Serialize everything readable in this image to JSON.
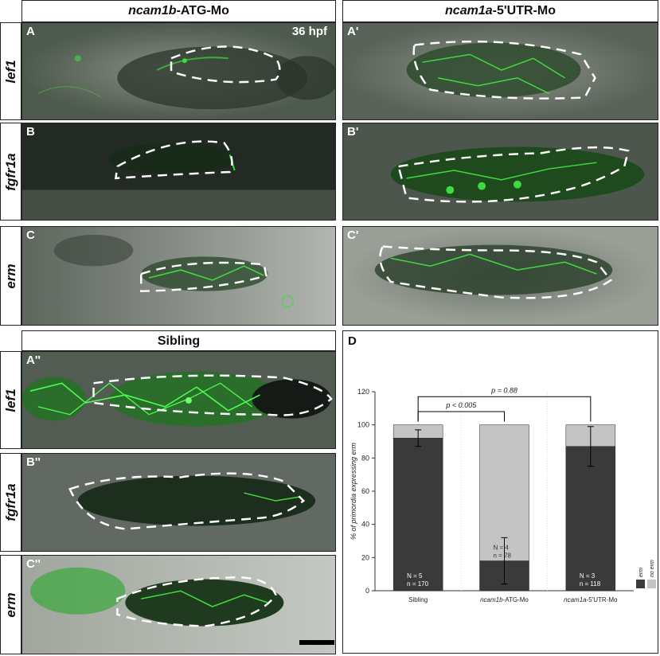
{
  "headers": {
    "left": {
      "italic": "ncam1b",
      "rest": "-ATG-Mo"
    },
    "right": {
      "italic": "ncam1a",
      "rest": "-5'UTR-Mo"
    },
    "sibling": "Sibling"
  },
  "row_labels": [
    "lef1",
    "fgfr1a",
    "erm"
  ],
  "panel_labels": {
    "a": "A",
    "a1": "A'",
    "a2": "A''",
    "b": "B",
    "b1": "B'",
    "b2": "B''",
    "c": "C",
    "c1": "C'",
    "c2": "C''",
    "d": "D"
  },
  "timepoint": "36 hpf",
  "colors": {
    "dark_bar": "#3a3a3a",
    "light_bar": "#c4c4c4",
    "fluorescence": "#3ddc3d"
  },
  "chart_data": {
    "type": "bar",
    "stacked": true,
    "categories": [
      "Sibling",
      "ncam1b-ATG-Mo",
      "ncam1a-5'UTR-Mo"
    ],
    "category_parts": [
      {
        "italic": "",
        "rest": "Sibling"
      },
      {
        "italic": "ncam1b",
        "rest": "-ATG-Mo"
      },
      {
        "italic": "ncam1a",
        "rest": "-5'UTR-Mo"
      }
    ],
    "series": [
      {
        "name": "erm",
        "values": [
          92,
          18,
          87
        ],
        "errors": [
          5,
          14,
          12
        ]
      },
      {
        "name": "no erm",
        "values": [
          8,
          82,
          13
        ]
      }
    ],
    "ylabel": "% of primordia expressing erm",
    "ylim": [
      0,
      120
    ],
    "yticks": [
      0,
      20,
      40,
      60,
      80,
      100,
      120
    ],
    "annotations": {
      "N": [
        "N = 5",
        "N = 4",
        "N = 3"
      ],
      "n": [
        "n = 170",
        "n = 78",
        "n = 118"
      ]
    },
    "significance": [
      {
        "from": 0,
        "to": 1,
        "label": "p < 0.005"
      },
      {
        "from": 0,
        "to": 2,
        "label": "p = 0.88"
      }
    ],
    "legend_position": "bottom-right"
  }
}
